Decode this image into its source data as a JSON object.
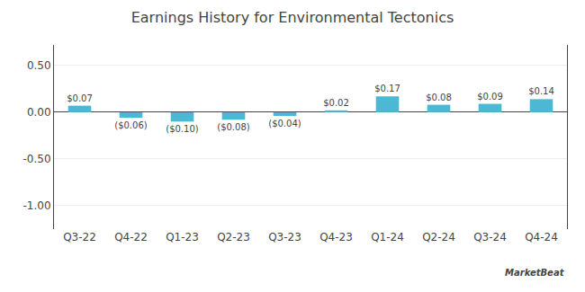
{
  "chart_data": {
    "type": "bar",
    "title": "Earnings History for Environmental Tectonics",
    "categories": [
      "Q3-22",
      "Q4-22",
      "Q1-23",
      "Q2-23",
      "Q3-23",
      "Q4-23",
      "Q1-24",
      "Q2-24",
      "Q3-24",
      "Q4-24"
    ],
    "values": [
      0.07,
      -0.06,
      -0.1,
      -0.08,
      -0.04,
      0.02,
      0.17,
      0.08,
      0.09,
      0.14
    ],
    "value_labels": [
      "$0.07",
      "($0.06)",
      "($0.10)",
      "($0.08)",
      "($0.04)",
      "$0.02",
      "$0.17",
      "$0.08",
      "$0.09",
      "$0.14"
    ],
    "data_labels": true,
    "color": "#4db8d4",
    "ylim": [
      -1.25,
      0.72
    ],
    "yticks": [
      {
        "value": -1.0,
        "label": "-1.00"
      },
      {
        "value": -0.5,
        "label": "-0.50"
      },
      {
        "value": 0.0,
        "label": "0.00"
      },
      {
        "value": 0.5,
        "label": "0.50"
      }
    ],
    "grid": true,
    "annotations": [
      "MarketBeat"
    ]
  }
}
